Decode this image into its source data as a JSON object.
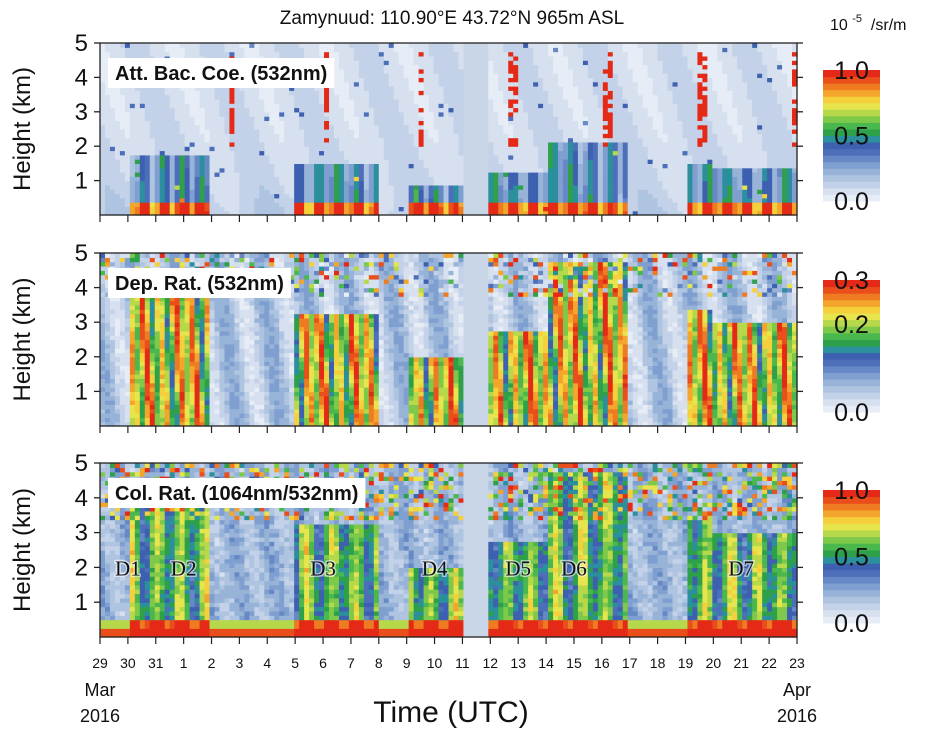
{
  "chart_data": {
    "type": "heatmap",
    "title": "Zamynuud:  110.90°E  43.72°N  965m ASL",
    "xlabel": "Time (UTC)",
    "x_ticks": [
      "29",
      "30",
      "31",
      "1",
      "2",
      "3",
      "4",
      "5",
      "6",
      "7",
      "8",
      "9",
      "10",
      "11",
      "12",
      "13",
      "14",
      "15",
      "16",
      "17",
      "18",
      "19",
      "20",
      "21",
      "22",
      "23"
    ],
    "x_start_label": {
      "month": "Mar",
      "year": "2016"
    },
    "x_end_label": {
      "month": "Apr",
      "year": "2016"
    },
    "x_range": [
      "2016-03-29",
      "2016-04-23"
    ],
    "data_gap": [
      "2016-04-11",
      "2016-04-12"
    ],
    "panels": [
      {
        "name": "Att. Bac. Coe. (532nm)",
        "ylabel": "Height (km)",
        "ylim": [
          0,
          5
        ],
        "y_ticks": [
          "1",
          "2",
          "3",
          "4",
          "5"
        ],
        "colorbar": {
          "ticks": [
            "1.0",
            "0.5",
            "0.0"
          ],
          "range": [
            0,
            1.0
          ],
          "unit_base": "10",
          "unit_exp": "-5",
          "unit_rest": " /sr/m"
        }
      },
      {
        "name": "Dep. Rat. (532nm)",
        "ylabel": "Height (km)",
        "ylim": [
          0,
          5
        ],
        "y_ticks": [
          "1",
          "2",
          "3",
          "4",
          "5"
        ],
        "colorbar": {
          "ticks": [
            "0.3",
            "0.2",
            "0.0"
          ],
          "range": [
            0,
            0.3
          ]
        }
      },
      {
        "name": "Col. Rat. (1064nm/532nm)",
        "ylabel": "Height (km)",
        "ylim": [
          0,
          5
        ],
        "y_ticks": [
          "1",
          "2",
          "3",
          "4",
          "5"
        ],
        "colorbar": {
          "ticks": [
            "1.0",
            "0.5",
            "0.0"
          ],
          "range": [
            0,
            1.0
          ]
        },
        "events": [
          {
            "label": "D1",
            "date": "2016-03-30"
          },
          {
            "label": "D2",
            "date": "2016-04-01"
          },
          {
            "label": "D3",
            "date": "2016-04-06"
          },
          {
            "label": "D4",
            "date": "2016-04-10"
          },
          {
            "label": "D5",
            "date": "2016-04-13"
          },
          {
            "label": "D6",
            "date": "2016-04-15"
          },
          {
            "label": "D7",
            "date": "2016-04-21"
          }
        ]
      }
    ],
    "colormap": [
      "#e7edf6",
      "#d6e0ef",
      "#c3d2e8",
      "#afc4e1",
      "#98b3d8",
      "#7f9fd0",
      "#6688c5",
      "#4d6fba",
      "#3d60b0",
      "#2b8f9c",
      "#2fa04a",
      "#4bb84d",
      "#7ec84a",
      "#b6d84b",
      "#e7e54e",
      "#f5cf3c",
      "#f3a52c",
      "#ee7a22",
      "#e94e1b",
      "#e42a17"
    ],
    "dust_days": [
      {
        "start": "2016-03-30",
        "end": "2016-04-01",
        "extent_km": 4.0
      },
      {
        "start": "2016-04-05",
        "end": "2016-04-07",
        "extent_km": 3.2
      },
      {
        "start": "2016-04-09",
        "end": "2016-04-10",
        "extent_km": 2.0
      },
      {
        "start": "2016-04-12",
        "end": "2016-04-13",
        "extent_km": 2.8
      },
      {
        "start": "2016-04-14",
        "end": "2016-04-16",
        "extent_km": 4.8
      },
      {
        "start": "2016-04-19",
        "end": "2016-04-19",
        "extent_km": 3.4
      },
      {
        "start": "2016-04-20",
        "end": "2016-04-22",
        "extent_km": 3.0
      }
    ]
  }
}
